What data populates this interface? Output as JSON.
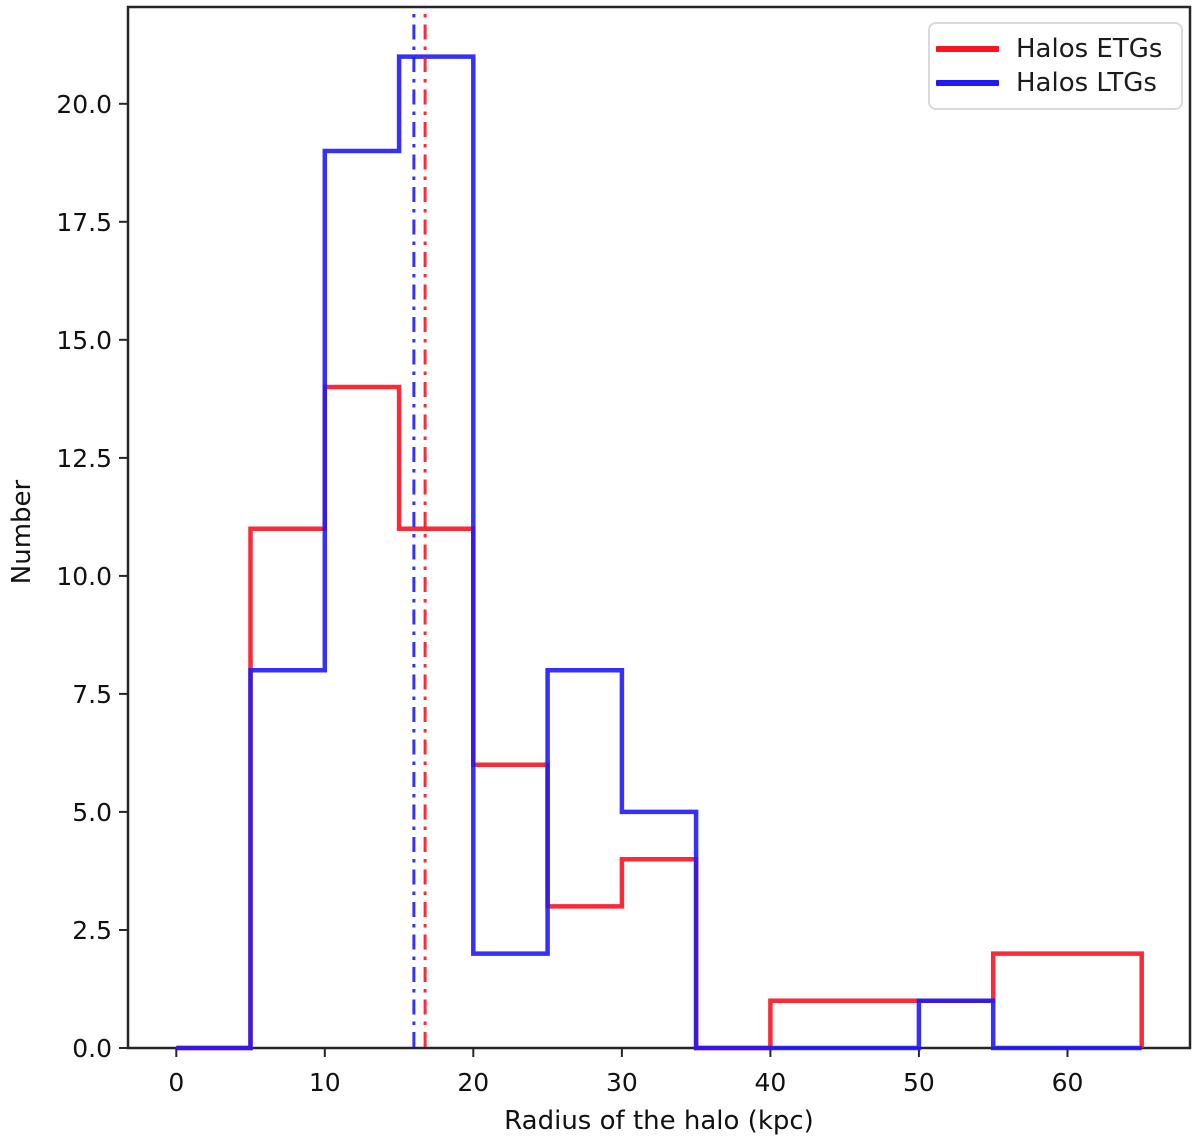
{
  "axes": {
    "xlabel": "Radius of the halo (kpc)",
    "ylabel": "Number",
    "xtick_labels": [
      "0",
      "10",
      "20",
      "30",
      "40",
      "50",
      "60"
    ],
    "ytick_labels": [
      "0.0",
      "2.5",
      "5.0",
      "7.5",
      "10.0",
      "12.5",
      "15.0",
      "17.5",
      "20.0"
    ]
  },
  "legend": {
    "position": "upper right",
    "items": [
      {
        "label": "Halos ETGs",
        "color": "#fa1420"
      },
      {
        "label": "Halos LTGs",
        "color": "#201af8"
      }
    ]
  },
  "colors": {
    "etgs": "#fa1420",
    "ltgs": "#201af8",
    "spine": "#262626",
    "text": "#111111"
  },
  "chart_data": {
    "type": "bar",
    "subtype": "step-histogram",
    "title": "",
    "xlabel": "Radius of the halo (kpc)",
    "ylabel": "Number",
    "bin_edges": [
      0,
      5,
      10,
      15,
      20,
      25,
      30,
      35,
      40,
      45,
      50,
      55,
      60,
      65
    ],
    "series": [
      {
        "name": "Halos ETGs",
        "color": "#fa1420",
        "values": [
          0,
          11,
          14,
          11,
          6,
          3,
          4,
          0,
          1,
          1,
          1,
          2,
          2
        ],
        "vline_x": 16.75,
        "vline_style": "dashdot"
      },
      {
        "name": "Halos LTGs",
        "color": "#201af8",
        "values": [
          0,
          8,
          19,
          21,
          2,
          8,
          5,
          0,
          0,
          0,
          1,
          0,
          0
        ],
        "vline_x": 16.0,
        "vline_style": "dashdot"
      }
    ],
    "xticks": [
      0,
      10,
      20,
      30,
      40,
      50,
      60
    ],
    "yticks": [
      0,
      2.5,
      5,
      7.5,
      10,
      12.5,
      15,
      17.5,
      20
    ],
    "xlim": [
      -3.25,
      68.25
    ],
    "ylim": [
      0,
      22.05
    ],
    "grid": false,
    "legend_position": "upper right"
  }
}
